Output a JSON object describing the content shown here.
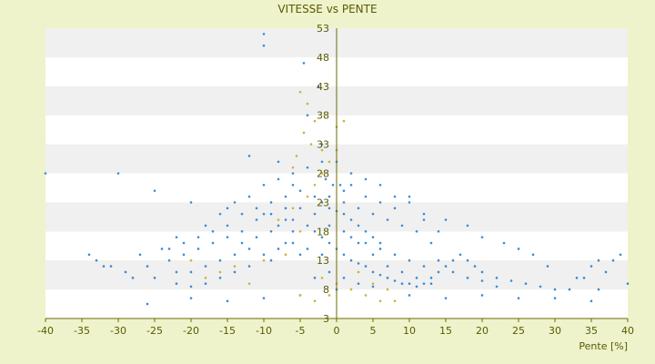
{
  "chart_data": {
    "type": "scatter",
    "title": "VITESSE vs PENTE",
    "xlabel": "Pente [%]",
    "ylabel": "",
    "xlim": [
      -40,
      40
    ],
    "ylim": [
      3,
      53
    ],
    "xticks": [
      -40,
      -35,
      -30,
      -25,
      -20,
      -15,
      -10,
      -5,
      0,
      5,
      10,
      15,
      20,
      25,
      30,
      35,
      40
    ],
    "yticks": [
      3,
      8,
      13,
      18,
      23,
      28,
      33,
      38,
      43,
      48,
      53
    ],
    "grid": "alternating horizontal bands",
    "series": [
      {
        "color": "#3a8bd4",
        "points": [
          [
            -10,
            52
          ],
          [
            -10,
            50
          ],
          [
            -4.5,
            47
          ],
          [
            -2.5,
            43
          ],
          [
            -4,
            38
          ],
          [
            -2,
            33
          ],
          [
            -8,
            30
          ],
          [
            -12,
            31
          ],
          [
            -1.5,
            27
          ],
          [
            -0.5,
            26
          ],
          [
            0.5,
            26
          ],
          [
            1,
            25
          ],
          [
            -3,
            24
          ],
          [
            -2,
            23
          ],
          [
            -1,
            22
          ],
          [
            0,
            21.5
          ],
          [
            1,
            21
          ],
          [
            2,
            20
          ],
          [
            3,
            19
          ],
          [
            4,
            18
          ],
          [
            5,
            17
          ],
          [
            6,
            16
          ],
          [
            -6,
            18
          ],
          [
            -7,
            16
          ],
          [
            -5,
            14
          ],
          [
            -9,
            13
          ],
          [
            -12,
            12
          ],
          [
            -14,
            11
          ],
          [
            -16,
            10
          ],
          [
            -18,
            9
          ],
          [
            -20,
            8.5
          ],
          [
            -22,
            9
          ],
          [
            -25,
            10
          ],
          [
            -28,
            10
          ],
          [
            -32,
            12
          ],
          [
            -34,
            14
          ],
          [
            -40,
            28
          ],
          [
            -30,
            28
          ],
          [
            -25,
            25
          ],
          [
            -20,
            23
          ],
          [
            -15,
            22
          ],
          [
            -10,
            21
          ],
          [
            -8,
            19
          ],
          [
            -6,
            20
          ],
          [
            -4,
            19
          ],
          [
            -3,
            18
          ],
          [
            -2,
            17
          ],
          [
            -1,
            16
          ],
          [
            0,
            15
          ],
          [
            1,
            14
          ],
          [
            2,
            13
          ],
          [
            3,
            12.5
          ],
          [
            4,
            12
          ],
          [
            5,
            11
          ],
          [
            6,
            10.5
          ],
          [
            7,
            10
          ],
          [
            8,
            9.5
          ],
          [
            9,
            9
          ],
          [
            10,
            9
          ],
          [
            11,
            8.5
          ],
          [
            12,
            9
          ],
          [
            13,
            10
          ],
          [
            14,
            11
          ],
          [
            15,
            12
          ],
          [
            16,
            13
          ],
          [
            17,
            14
          ],
          [
            18,
            13
          ],
          [
            19,
            12
          ],
          [
            20,
            11
          ],
          [
            22,
            10
          ],
          [
            24,
            9.5
          ],
          [
            26,
            9
          ],
          [
            28,
            8.5
          ],
          [
            30,
            8
          ],
          [
            32,
            8
          ],
          [
            34,
            10
          ],
          [
            35,
            12
          ],
          [
            36,
            13
          ],
          [
            38,
            13
          ],
          [
            39,
            14
          ],
          [
            40,
            9
          ],
          [
            10,
            24
          ],
          [
            8,
            22
          ],
          [
            12,
            20
          ],
          [
            14,
            18
          ],
          [
            6,
            23
          ],
          [
            4,
            24
          ],
          [
            2,
            26
          ],
          [
            -6,
            26
          ],
          [
            -5,
            25
          ],
          [
            -7,
            22
          ],
          [
            -9,
            21
          ],
          [
            -11,
            20
          ],
          [
            -13,
            18
          ],
          [
            -15,
            17
          ],
          [
            -17,
            16
          ],
          [
            -19,
            15
          ],
          [
            -21,
            14
          ],
          [
            -23,
            13
          ],
          [
            -26,
            12
          ],
          [
            -29,
            11
          ],
          [
            -31,
            12
          ],
          [
            -33,
            13
          ],
          [
            -27,
            14
          ],
          [
            -24,
            15
          ],
          [
            -22,
            17
          ],
          [
            -18,
            19
          ],
          [
            -16,
            21
          ],
          [
            -14,
            23
          ],
          [
            -12,
            24
          ],
          [
            -10,
            26
          ],
          [
            -8,
            27
          ],
          [
            -6,
            28
          ],
          [
            -4,
            29
          ],
          [
            -2,
            30
          ],
          [
            0,
            30
          ],
          [
            2,
            28
          ],
          [
            4,
            27
          ],
          [
            6,
            26
          ],
          [
            8,
            24
          ],
          [
            10,
            23
          ],
          [
            12,
            21
          ],
          [
            15,
            20
          ],
          [
            18,
            19
          ],
          [
            20,
            17
          ],
          [
            23,
            16
          ],
          [
            25,
            15
          ],
          [
            27,
            14
          ],
          [
            29,
            12
          ],
          [
            33,
            10
          ],
          [
            37,
            11
          ],
          [
            36,
            8
          ],
          [
            -26,
            5.5
          ],
          [
            -20,
            6.5
          ],
          [
            -15,
            6
          ],
          [
            -10,
            6.5
          ],
          [
            -5,
            7
          ],
          [
            0,
            8
          ],
          [
            5,
            8.5
          ],
          [
            10,
            7
          ],
          [
            15,
            6.5
          ],
          [
            20,
            7
          ],
          [
            25,
            6.5
          ],
          [
            30,
            6.5
          ],
          [
            35,
            6
          ],
          [
            -3,
            10
          ],
          [
            -1,
            11
          ],
          [
            1,
            10
          ],
          [
            3,
            9
          ],
          [
            -2,
            14
          ],
          [
            -4,
            15
          ],
          [
            -6,
            16
          ],
          [
            -8,
            15
          ],
          [
            -10,
            14
          ],
          [
            -12,
            15
          ],
          [
            -14,
            14
          ],
          [
            -16,
            13
          ],
          [
            -18,
            12
          ],
          [
            -20,
            11
          ],
          [
            -22,
            11
          ],
          [
            2,
            17
          ],
          [
            4,
            16
          ],
          [
            6,
            15
          ],
          [
            8,
            14
          ],
          [
            10,
            13
          ],
          [
            12,
            12
          ],
          [
            14,
            13
          ],
          [
            16,
            11
          ],
          [
            18,
            10
          ],
          [
            20,
            9.5
          ],
          [
            22,
            8.5
          ],
          [
            -1,
            19
          ],
          [
            1,
            18
          ],
          [
            3,
            16
          ],
          [
            5,
            14
          ],
          [
            7,
            12
          ],
          [
            9,
            11
          ],
          [
            11,
            10
          ],
          [
            13,
            9
          ],
          [
            -7,
            24
          ],
          [
            -9,
            23
          ],
          [
            -11,
            22
          ],
          [
            -13,
            21
          ],
          [
            -15,
            19
          ],
          [
            -17,
            18
          ],
          [
            -19,
            17
          ],
          [
            -21,
            16
          ],
          [
            -23,
            15
          ],
          [
            -1,
            24
          ],
          [
            1,
            23
          ],
          [
            3,
            22
          ],
          [
            5,
            21
          ],
          [
            7,
            20
          ],
          [
            9,
            19
          ],
          [
            11,
            18
          ],
          [
            13,
            16
          ],
          [
            -3,
            21
          ],
          [
            -5,
            22
          ],
          [
            -7,
            20
          ],
          [
            -9,
            18
          ],
          [
            -11,
            17
          ],
          [
            -13,
            16
          ]
        ]
      },
      {
        "color": "#c9b53a",
        "points": [
          [
            -5,
            42
          ],
          [
            -4,
            40
          ],
          [
            -3,
            37
          ],
          [
            -4.5,
            35
          ],
          [
            -3.5,
            33
          ],
          [
            -2,
            32
          ],
          [
            -1,
            30
          ],
          [
            -5.5,
            31
          ],
          [
            -6,
            29
          ],
          [
            0,
            32
          ],
          [
            0,
            36
          ],
          [
            1,
            37
          ],
          [
            -2,
            28
          ],
          [
            -3,
            26
          ],
          [
            -4,
            24
          ],
          [
            -6,
            22
          ],
          [
            -8,
            20
          ],
          [
            -5,
            18
          ],
          [
            -7,
            14
          ],
          [
            -10,
            13
          ],
          [
            -14,
            12
          ],
          [
            -18,
            10
          ],
          [
            -2,
            10
          ],
          [
            0,
            9
          ],
          [
            2,
            8
          ],
          [
            4,
            7
          ],
          [
            6,
            6
          ],
          [
            8,
            6
          ],
          [
            5,
            9
          ],
          [
            7,
            8
          ],
          [
            3,
            11
          ],
          [
            -1,
            7
          ],
          [
            -3,
            6
          ],
          [
            -5,
            7
          ],
          [
            -12,
            9
          ],
          [
            -16,
            11
          ],
          [
            -20,
            13
          ]
        ]
      }
    ]
  }
}
